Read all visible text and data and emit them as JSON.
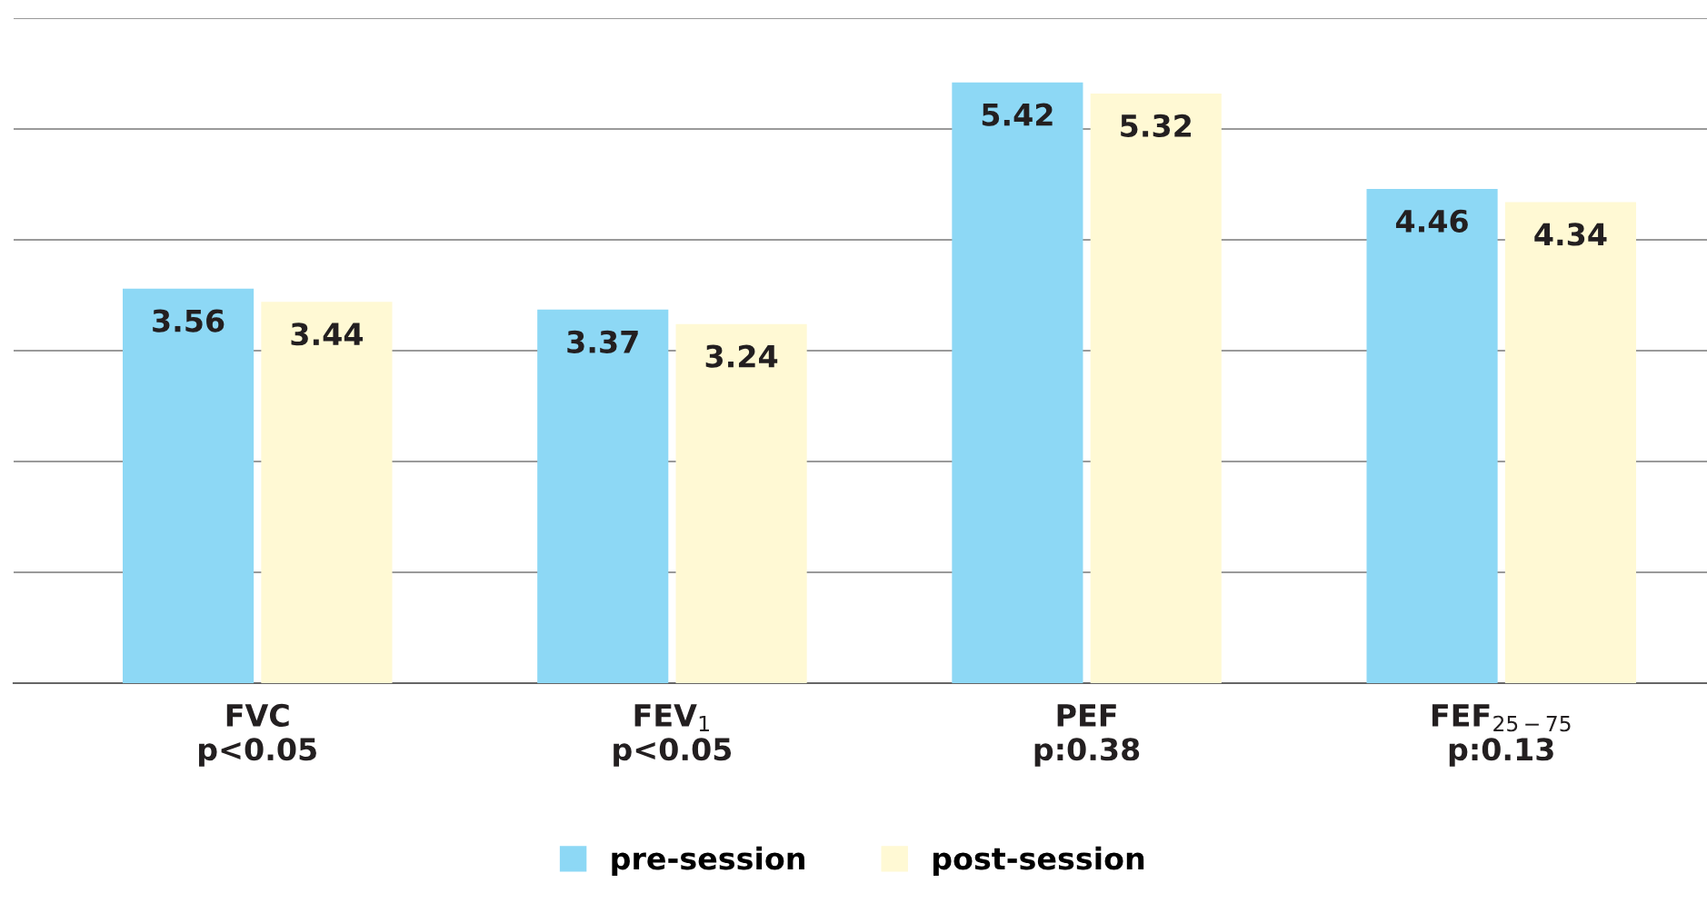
{
  "chart_data": {
    "type": "bar",
    "categories": [
      "FVC\np<0.05",
      "FEV$_{1}$\np<0.05",
      "PEF\np:0.38",
      "FEF$_{25−75}$\np:0.13"
    ],
    "series": [
      {
        "name": "pre-session",
        "color": "#8dd8f5",
        "values": [
          3.56,
          3.37,
          5.42,
          4.46
        ]
      },
      {
        "name": "post-session",
        "color": "#fff9d4",
        "values": [
          3.44,
          3.24,
          5.32,
          4.34
        ]
      }
    ],
    "ylim": [
      0,
      6
    ],
    "yticks": [
      {
        "value": 0,
        "label": null
      },
      {
        "value": 1,
        "label": null
      },
      {
        "value": 2,
        "label": null
      },
      {
        "value": 3,
        "label": null
      },
      {
        "value": 4,
        "label": null
      },
      {
        "value": 5,
        "label": null
      },
      {
        "value": 6,
        "label": null
      }
    ],
    "tick_labels": "x",
    "grid": "y",
    "legend": "bottom",
    "data_labels": true
  }
}
